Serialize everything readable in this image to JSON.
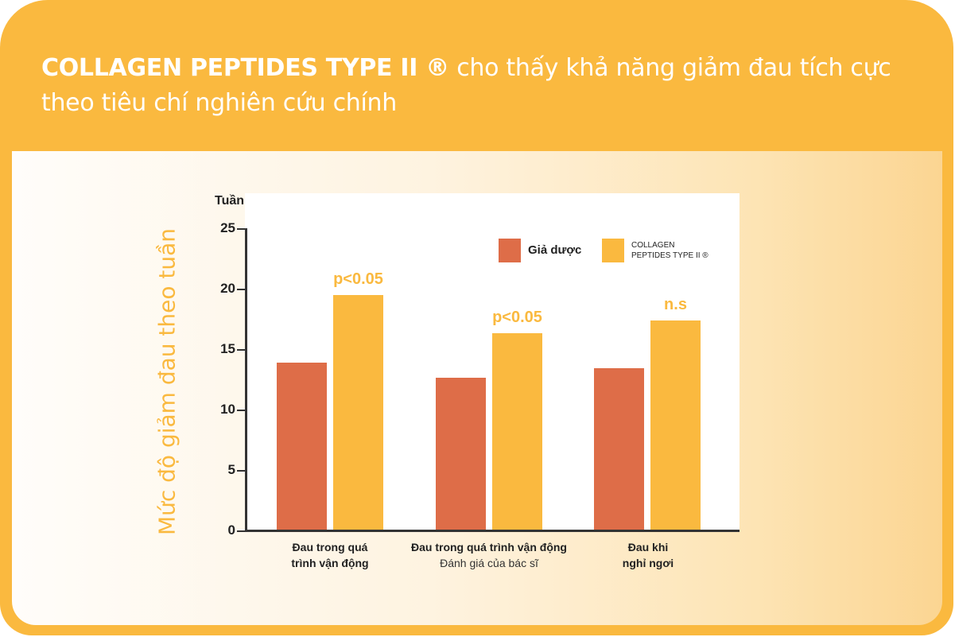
{
  "header": {
    "title_bold": "COLLAGEN PEPTIDES TYPE II ®",
    "title_rest": " cho thấy khả năng giảm đau tích cực theo tiêu chí nghiên cứu chính"
  },
  "chart_data": {
    "type": "bar",
    "title": "COLLAGEN PEPTIDES TYPE II ® cho thấy khả năng giảm đau tích cực theo tiêu chí nghiên cứu chính",
    "ylabel": "Mức độ giảm đau theo tuần",
    "y_unit": "Tuần",
    "xlabel": "",
    "ylim": [
      0,
      25
    ],
    "yticks": [
      "25",
      "20",
      "15",
      "10",
      "5",
      "0"
    ],
    "categories": [
      {
        "line1": "Đau trong quá",
        "line2": "trình vận động",
        "subtitle": ""
      },
      {
        "line1": "Đau trong quá trình vận động",
        "line2": "",
        "subtitle": "Đánh giá của bác sĩ"
      },
      {
        "line1": "Đau khi",
        "line2": "nghỉ ngơi",
        "subtitle": ""
      }
    ],
    "series": [
      {
        "name": "Giả dược",
        "color": "#de6d48",
        "values": [
          13.9,
          12.6,
          13.4
        ]
      },
      {
        "name": "COLLAGEN PEPTIDES TYPE II ®",
        "color": "#fab93f",
        "values": [
          19.5,
          16.3,
          17.4
        ]
      }
    ],
    "annotations": [
      "p<0.05",
      "p<0.05",
      "n.s"
    ],
    "legend": {
      "position": "top-right",
      "items": [
        {
          "label": "Giả dược",
          "color": "#de6d48"
        },
        {
          "label_line1": "COLLAGEN",
          "label_line2": "PEPTIDES TYPE II ®",
          "color": "#fab93f"
        }
      ]
    },
    "grid": false
  },
  "colors": {
    "accent": "#fab93f",
    "placebo": "#de6d48",
    "text": "#222222"
  }
}
